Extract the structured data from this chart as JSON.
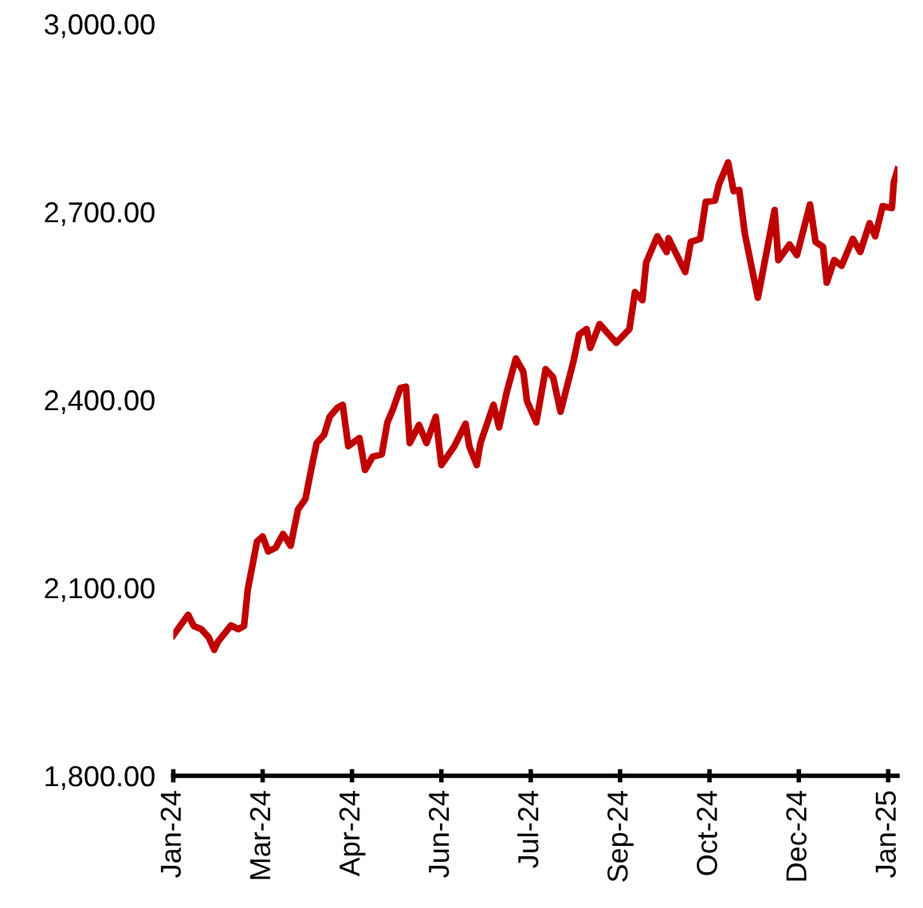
{
  "chart_data": {
    "type": "line",
    "x": [
      "2024-01-13",
      "2024-01-21",
      "2024-01-24",
      "2024-01-28",
      "2024-02-01",
      "2024-02-04",
      "2024-02-06",
      "2024-02-13",
      "2024-02-17",
      "2024-02-20",
      "2024-02-22",
      "2024-02-27",
      "2024-03-01",
      "2024-03-04",
      "2024-03-08",
      "2024-03-12",
      "2024-03-16",
      "2024-03-20",
      "2024-03-24",
      "2024-03-27",
      "2024-03-30",
      "2024-04-03",
      "2024-04-06",
      "2024-04-10",
      "2024-04-13",
      "2024-04-16",
      "2024-04-22",
      "2024-04-25",
      "2024-04-29",
      "2024-05-04",
      "2024-05-07",
      "2024-05-10",
      "2024-05-14",
      "2024-05-17",
      "2024-05-19",
      "2024-05-24",
      "2024-05-28",
      "2024-06-02",
      "2024-06-05",
      "2024-06-12",
      "2024-06-18",
      "2024-06-20",
      "2024-06-24",
      "2024-06-26",
      "2024-07-03",
      "2024-07-06",
      "2024-07-10",
      "2024-07-15",
      "2024-07-19",
      "2024-07-21",
      "2024-07-26",
      "2024-07-31",
      "2024-08-04",
      "2024-08-08",
      "2024-08-15",
      "2024-08-18",
      "2024-08-22",
      "2024-08-24",
      "2024-08-29",
      "2024-09-07",
      "2024-09-14",
      "2024-09-17",
      "2024-09-21",
      "2024-09-23",
      "2024-09-29",
      "2024-10-04",
      "2024-10-05",
      "2024-10-14",
      "2024-10-17",
      "2024-10-22",
      "2024-10-25",
      "2024-10-30",
      "2024-11-01",
      "2024-11-06",
      "2024-11-09",
      "2024-11-12",
      "2024-11-15",
      "2024-11-22",
      "2024-12-01",
      "2024-12-03",
      "2024-12-09",
      "2024-12-13",
      "2024-12-20",
      "2024-12-23",
      "2024-12-27",
      "2024-12-29",
      "2025-01-02",
      "2025-01-06",
      "2025-01-12",
      "2025-01-16",
      "2025-01-21",
      "2025-01-24",
      "2025-01-28",
      "2025-02-02",
      "2025-02-03",
      "2025-02-05"
    ],
    "series": [
      {
        "color": "#c00000",
        "values": [
          2024,
          2057,
          2039,
          2034,
          2021,
          2001,
          2014,
          2040,
          2034,
          2039,
          2097,
          2174,
          2182,
          2158,
          2164,
          2186,
          2167,
          2225,
          2242,
          2288,
          2331,
          2344,
          2373,
          2387,
          2392,
          2326,
          2339,
          2288,
          2309,
          2313,
          2364,
          2385,
          2419,
          2421,
          2331,
          2360,
          2331,
          2373,
          2296,
          2326,
          2362,
          2326,
          2296,
          2331,
          2392,
          2356,
          2411,
          2466,
          2445,
          2398,
          2364,
          2449,
          2436,
          2381,
          2462,
          2504,
          2513,
          2483,
          2521,
          2491,
          2513,
          2572,
          2559,
          2619,
          2661,
          2636,
          2658,
          2604,
          2652,
          2657,
          2716,
          2718,
          2743,
          2779,
          2733,
          2735,
          2665,
          2563,
          2703,
          2623,
          2648,
          2631,
          2712,
          2652,
          2644,
          2587,
          2623,
          2614,
          2657,
          2636,
          2682,
          2661,
          2709,
          2706,
          2747,
          2767
        ]
      }
    ],
    "xlim": [
      "2024-01-13",
      "2025-02-05"
    ],
    "xticks": [
      {
        "value": "2024-01-13",
        "label": "Jan-24"
      },
      {
        "value": "2024-03-01",
        "label": "Mar-24"
      },
      {
        "value": "2024-04-18",
        "label": "Apr-24"
      },
      {
        "value": "2024-06-05",
        "label": "Jun-24"
      },
      {
        "value": "2024-07-23",
        "label": "Jul-24"
      },
      {
        "value": "2024-09-09",
        "label": "Sep-24"
      },
      {
        "value": "2024-10-27",
        "label": "Oct-24"
      },
      {
        "value": "2024-12-14",
        "label": "Dec-24"
      },
      {
        "value": "2025-01-31",
        "label": "Jan-25"
      }
    ],
    "ylim": [
      1800,
      3000
    ],
    "yticks": [
      {
        "value": 1800,
        "label": "1,800.00"
      },
      {
        "value": 2100,
        "label": "2,100.00"
      },
      {
        "value": 2400,
        "label": "2,400.00"
      },
      {
        "value": 2700,
        "label": "2,700.00"
      },
      {
        "value": 3000,
        "label": "3,000.00"
      }
    ],
    "grid": false,
    "legend": false,
    "marker": "none",
    "line_style": "solid"
  }
}
